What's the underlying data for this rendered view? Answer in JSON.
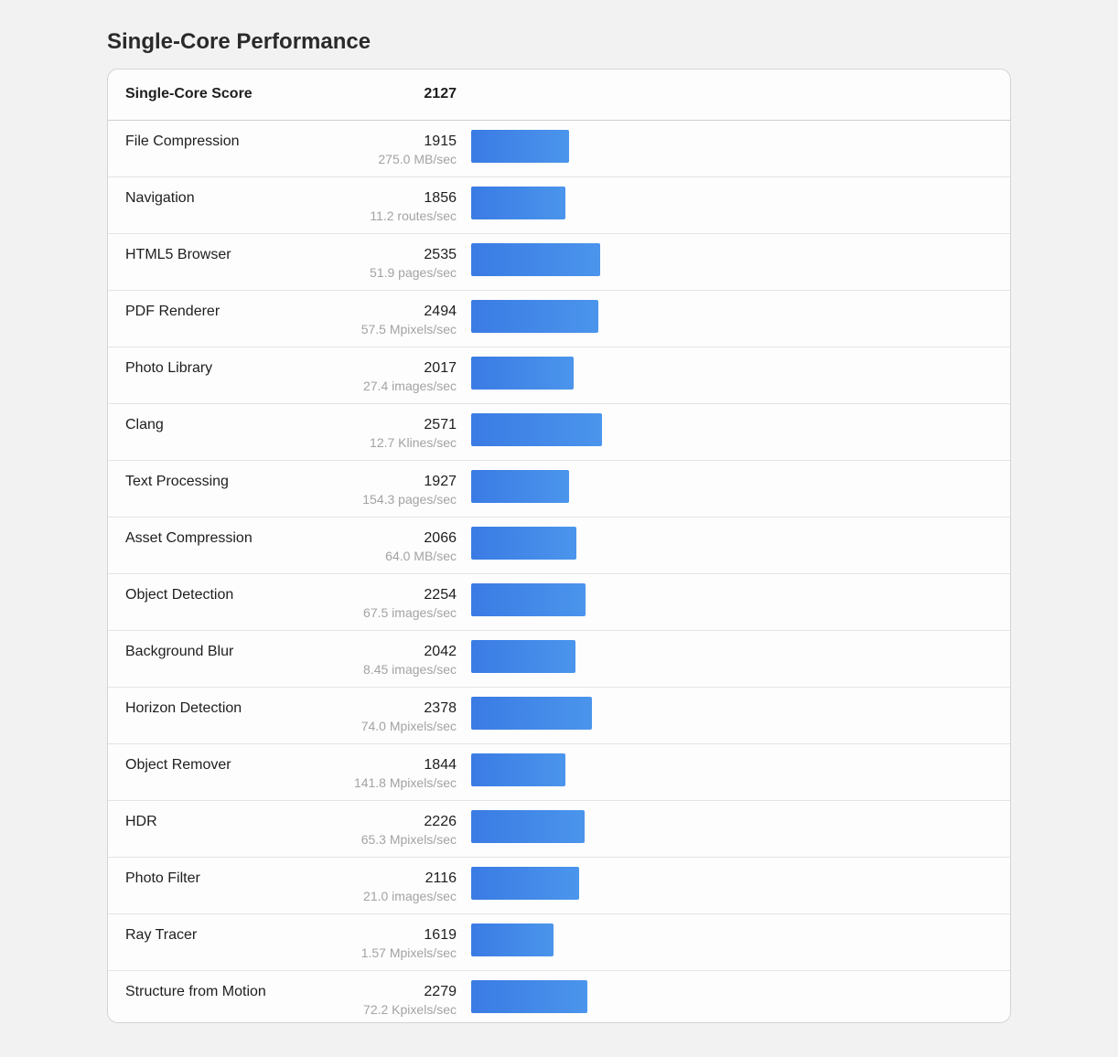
{
  "page": {
    "title": "Single-Core Performance"
  },
  "colors": {
    "bar_start": "#3a7be4",
    "bar_end": "#4b95ec",
    "background": "#f2f2f2",
    "card": "#fdfdfd"
  },
  "summary": {
    "label": "Single-Core Score",
    "score": "2127"
  },
  "chart_data": {
    "type": "bar",
    "orientation": "horizontal",
    "title": "Single-Core Performance",
    "overall_score": 2127,
    "categories": [
      "File Compression",
      "Navigation",
      "HTML5 Browser",
      "PDF Renderer",
      "Photo Library",
      "Clang",
      "Text Processing",
      "Asset Compression",
      "Object Detection",
      "Background Blur",
      "Horizon Detection",
      "Object Remover",
      "HDR",
      "Photo Filter",
      "Ray Tracer",
      "Structure from Motion"
    ],
    "values": [
      1915,
      1856,
      2535,
      2494,
      2017,
      2571,
      1927,
      2066,
      2254,
      2042,
      2378,
      1844,
      2226,
      2116,
      1619,
      2279
    ],
    "units": [
      "275.0 MB/sec",
      "11.2 routes/sec",
      "51.9 pages/sec",
      "57.5 Mpixels/sec",
      "27.4 images/sec",
      "12.7 Klines/sec",
      "154.3 pages/sec",
      "64.0 MB/sec",
      "67.5 images/sec",
      "8.45 images/sec",
      "74.0 Mpixels/sec",
      "141.8 Mpixels/sec",
      "65.3 Mpixels/sec",
      "21.0 images/sec",
      "1.57 Mpixels/sec",
      "72.2 Kpixels/sec"
    ],
    "xlabel": "",
    "ylabel": "",
    "grid": false,
    "legend": "none"
  }
}
